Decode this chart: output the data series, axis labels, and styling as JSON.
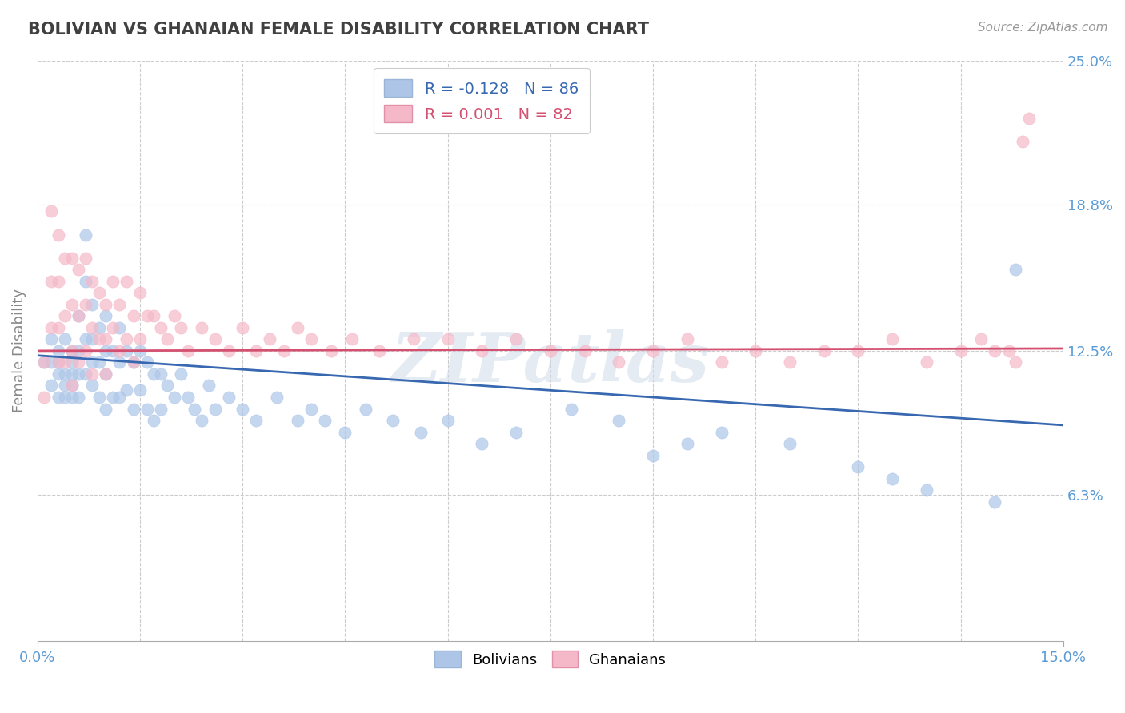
{
  "title": "BOLIVIAN VS GHANAIAN FEMALE DISABILITY CORRELATION CHART",
  "source_text": "Source: ZipAtlas.com",
  "ylabel": "Female Disability",
  "xlim": [
    0.0,
    0.15
  ],
  "ylim": [
    0.0,
    0.25
  ],
  "yticks": [
    0.063,
    0.125,
    0.188,
    0.25
  ],
  "ytick_labels": [
    "6.3%",
    "12.5%",
    "18.8%",
    "25.0%"
  ],
  "xtick_labels": [
    "0.0%",
    "15.0%"
  ],
  "xticks": [
    0.0,
    0.15
  ],
  "bolivian_color": "#adc6e8",
  "ghanaian_color": "#f5b8c8",
  "trend_bolivian_color": "#3868b0",
  "trend_ghanaian_color": "#d45070",
  "bolivian_R": -0.128,
  "bolivian_N": 86,
  "ghanaian_R": 0.001,
  "ghanaian_N": 82,
  "title_color": "#404040",
  "axis_label_color": "#5b9bd5",
  "watermark": "ZIPatlas",
  "bolivian_x": [
    0.001,
    0.002,
    0.002,
    0.002,
    0.003,
    0.003,
    0.003,
    0.003,
    0.004,
    0.004,
    0.004,
    0.004,
    0.005,
    0.005,
    0.005,
    0.005,
    0.005,
    0.006,
    0.006,
    0.006,
    0.006,
    0.007,
    0.007,
    0.007,
    0.007,
    0.008,
    0.008,
    0.008,
    0.008,
    0.009,
    0.009,
    0.009,
    0.01,
    0.01,
    0.01,
    0.01,
    0.011,
    0.011,
    0.012,
    0.012,
    0.012,
    0.013,
    0.013,
    0.014,
    0.014,
    0.015,
    0.015,
    0.016,
    0.016,
    0.017,
    0.017,
    0.018,
    0.018,
    0.019,
    0.02,
    0.021,
    0.022,
    0.023,
    0.024,
    0.025,
    0.026,
    0.028,
    0.03,
    0.032,
    0.035,
    0.038,
    0.04,
    0.042,
    0.045,
    0.048,
    0.052,
    0.056,
    0.06,
    0.065,
    0.07,
    0.078,
    0.085,
    0.09,
    0.095,
    0.1,
    0.11,
    0.12,
    0.125,
    0.13,
    0.14,
    0.143
  ],
  "bolivian_y": [
    0.12,
    0.13,
    0.11,
    0.12,
    0.115,
    0.125,
    0.105,
    0.12,
    0.13,
    0.115,
    0.11,
    0.105,
    0.125,
    0.115,
    0.105,
    0.12,
    0.11,
    0.14,
    0.125,
    0.115,
    0.105,
    0.175,
    0.155,
    0.13,
    0.115,
    0.145,
    0.13,
    0.12,
    0.11,
    0.135,
    0.12,
    0.105,
    0.14,
    0.125,
    0.115,
    0.1,
    0.125,
    0.105,
    0.135,
    0.12,
    0.105,
    0.125,
    0.108,
    0.12,
    0.1,
    0.125,
    0.108,
    0.12,
    0.1,
    0.115,
    0.095,
    0.115,
    0.1,
    0.11,
    0.105,
    0.115,
    0.105,
    0.1,
    0.095,
    0.11,
    0.1,
    0.105,
    0.1,
    0.095,
    0.105,
    0.095,
    0.1,
    0.095,
    0.09,
    0.1,
    0.095,
    0.09,
    0.095,
    0.085,
    0.09,
    0.1,
    0.095,
    0.08,
    0.085,
    0.09,
    0.085,
    0.075,
    0.07,
    0.065,
    0.06,
    0.16
  ],
  "ghanaian_x": [
    0.001,
    0.001,
    0.002,
    0.002,
    0.002,
    0.003,
    0.003,
    0.003,
    0.003,
    0.004,
    0.004,
    0.004,
    0.005,
    0.005,
    0.005,
    0.005,
    0.006,
    0.006,
    0.006,
    0.007,
    0.007,
    0.007,
    0.008,
    0.008,
    0.008,
    0.009,
    0.009,
    0.01,
    0.01,
    0.01,
    0.011,
    0.011,
    0.012,
    0.012,
    0.013,
    0.013,
    0.014,
    0.014,
    0.015,
    0.015,
    0.016,
    0.017,
    0.018,
    0.019,
    0.02,
    0.021,
    0.022,
    0.024,
    0.026,
    0.028,
    0.03,
    0.032,
    0.034,
    0.036,
    0.038,
    0.04,
    0.043,
    0.046,
    0.05,
    0.055,
    0.06,
    0.065,
    0.07,
    0.075,
    0.08,
    0.085,
    0.09,
    0.095,
    0.1,
    0.105,
    0.11,
    0.115,
    0.12,
    0.125,
    0.13,
    0.135,
    0.138,
    0.14,
    0.142,
    0.143,
    0.144,
    0.145
  ],
  "ghanaian_y": [
    0.12,
    0.105,
    0.185,
    0.155,
    0.135,
    0.175,
    0.155,
    0.135,
    0.12,
    0.165,
    0.14,
    0.12,
    0.165,
    0.145,
    0.125,
    0.11,
    0.16,
    0.14,
    0.12,
    0.165,
    0.145,
    0.125,
    0.155,
    0.135,
    0.115,
    0.15,
    0.13,
    0.145,
    0.13,
    0.115,
    0.155,
    0.135,
    0.145,
    0.125,
    0.155,
    0.13,
    0.14,
    0.12,
    0.15,
    0.13,
    0.14,
    0.14,
    0.135,
    0.13,
    0.14,
    0.135,
    0.125,
    0.135,
    0.13,
    0.125,
    0.135,
    0.125,
    0.13,
    0.125,
    0.135,
    0.13,
    0.125,
    0.13,
    0.125,
    0.13,
    0.13,
    0.125,
    0.13,
    0.125,
    0.125,
    0.12,
    0.125,
    0.13,
    0.12,
    0.125,
    0.12,
    0.125,
    0.125,
    0.13,
    0.12,
    0.125,
    0.13,
    0.125,
    0.125,
    0.12,
    0.215,
    0.225
  ]
}
